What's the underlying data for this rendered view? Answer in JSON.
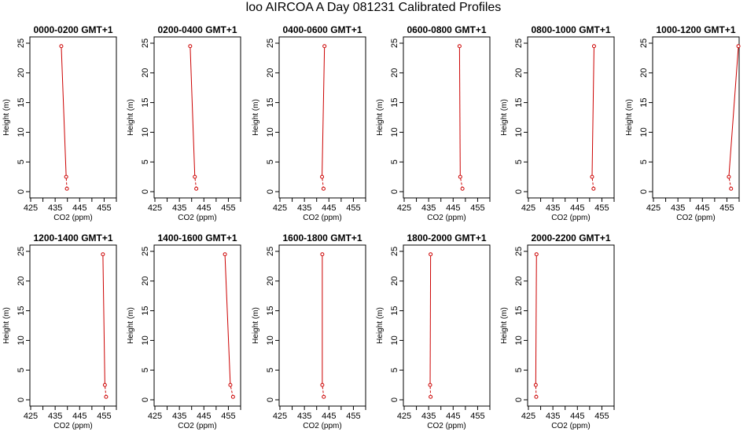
{
  "title": "loo AIRCOA A  Day 081231  Calibrated Profiles",
  "colors": {
    "series": "#cc0000",
    "axis": "#000000",
    "background": "#ffffff"
  },
  "chart_data": [
    {
      "type": "line",
      "title": "0000-0200 GMT+1",
      "xlabel": "CO2 (ppm)",
      "ylabel": "Height (m)",
      "xlim": [
        425,
        460
      ],
      "ylim": [
        0,
        25
      ],
      "xticks": [
        425,
        435,
        445,
        455
      ],
      "yticks": [
        0,
        5,
        10,
        15,
        20,
        25
      ],
      "x": [
        439.8,
        439.5,
        437.5
      ],
      "y": [
        0.5,
        2.5,
        24.5
      ]
    },
    {
      "type": "line",
      "title": "0200-0400 GMT+1",
      "xlabel": "CO2 (ppm)",
      "ylabel": "Height (m)",
      "xlim": [
        425,
        460
      ],
      "ylim": [
        0,
        25
      ],
      "xticks": [
        425,
        435,
        445,
        455
      ],
      "yticks": [
        0,
        5,
        10,
        15,
        20,
        25
      ],
      "x": [
        441.9,
        441.3,
        439.4
      ],
      "y": [
        0.5,
        2.5,
        24.5
      ]
    },
    {
      "type": "line",
      "title": "0400-0600 GMT+1",
      "xlabel": "CO2 (ppm)",
      "ylabel": "Height (m)",
      "xlim": [
        425,
        460
      ],
      "ylim": [
        0,
        25
      ],
      "xticks": [
        425,
        435,
        445,
        455
      ],
      "yticks": [
        0,
        5,
        10,
        15,
        20,
        25
      ],
      "x": [
        442.8,
        442.2,
        443.2
      ],
      "y": [
        0.5,
        2.5,
        24.5
      ]
    },
    {
      "type": "line",
      "title": "0600-0800 GMT+1",
      "xlabel": "CO2 (ppm)",
      "ylabel": "Height (m)",
      "xlim": [
        425,
        460
      ],
      "ylim": [
        0,
        25
      ],
      "xticks": [
        425,
        435,
        445,
        455
      ],
      "yticks": [
        0,
        5,
        10,
        15,
        20,
        25
      ],
      "x": [
        448.8,
        447.9,
        447.6
      ],
      "y": [
        0.5,
        2.5,
        24.5
      ]
    },
    {
      "type": "line",
      "title": "0800-1000 GMT+1",
      "xlabel": "CO2 (ppm)",
      "ylabel": "Height (m)",
      "xlim": [
        425,
        460
      ],
      "ylim": [
        0,
        25
      ],
      "xticks": [
        425,
        435,
        445,
        455
      ],
      "yticks": [
        0,
        5,
        10,
        15,
        20,
        25
      ],
      "x": [
        451.6,
        451.0,
        451.8
      ],
      "y": [
        0.5,
        2.5,
        24.5
      ]
    },
    {
      "type": "line",
      "title": "1000-1200 GMT+1",
      "xlabel": "CO2 (ppm)",
      "ylabel": "Height (m)",
      "xlim": [
        425,
        460
      ],
      "ylim": [
        0,
        25
      ],
      "xticks": [
        425,
        435,
        445,
        455
      ],
      "yticks": [
        0,
        5,
        10,
        15,
        20,
        25
      ],
      "x": [
        456.7,
        455.8,
        459.7
      ],
      "y": [
        0.5,
        2.5,
        24.5
      ]
    },
    {
      "type": "line",
      "title": "1200-1400 GMT+1",
      "xlabel": "CO2 (ppm)",
      "ylabel": "Height (m)",
      "xlim": [
        425,
        460
      ],
      "ylim": [
        0,
        25
      ],
      "xticks": [
        425,
        435,
        445,
        455
      ],
      "yticks": [
        0,
        5,
        10,
        15,
        20,
        25
      ],
      "x": [
        455.8,
        455.3,
        454.5
      ],
      "y": [
        0.5,
        2.5,
        24.5
      ]
    },
    {
      "type": "line",
      "title": "1400-1600 GMT+1",
      "xlabel": "CO2 (ppm)",
      "ylabel": "Height (m)",
      "xlim": [
        425,
        460
      ],
      "ylim": [
        0,
        25
      ],
      "xticks": [
        425,
        435,
        445,
        455
      ],
      "yticks": [
        0,
        5,
        10,
        15,
        20,
        25
      ],
      "x": [
        456.9,
        455.8,
        453.6
      ],
      "y": [
        0.5,
        2.5,
        24.5
      ]
    },
    {
      "type": "line",
      "title": "1600-1800 GMT+1",
      "xlabel": "CO2 (ppm)",
      "ylabel": "Height (m)",
      "xlim": [
        425,
        460
      ],
      "ylim": [
        0,
        25
      ],
      "xticks": [
        425,
        435,
        445,
        455
      ],
      "yticks": [
        0,
        5,
        10,
        15,
        20,
        25
      ],
      "x": [
        442.9,
        442.3,
        442.3
      ],
      "y": [
        0.5,
        2.5,
        24.5
      ]
    },
    {
      "type": "line",
      "title": "1800-2000 GMT+1",
      "xlabel": "CO2 (ppm)",
      "ylabel": "Height (m)",
      "xlim": [
        425,
        460
      ],
      "ylim": [
        0,
        25
      ],
      "xticks": [
        425,
        435,
        445,
        455
      ],
      "yticks": [
        0,
        5,
        10,
        15,
        20,
        25
      ],
      "x": [
        435.8,
        435.6,
        435.8
      ],
      "y": [
        0.5,
        2.5,
        24.5
      ]
    },
    {
      "type": "line",
      "title": "2000-2200 GMT+1",
      "xlabel": "CO2 (ppm)",
      "ylabel": "Height (m)",
      "xlim": [
        425,
        460
      ],
      "ylim": [
        0,
        25
      ],
      "xticks": [
        425,
        435,
        445,
        455
      ],
      "yticks": [
        0,
        5,
        10,
        15,
        20,
        25
      ],
      "x": [
        428.2,
        428.0,
        428.3
      ],
      "y": [
        0.5,
        2.5,
        24.5
      ]
    }
  ]
}
